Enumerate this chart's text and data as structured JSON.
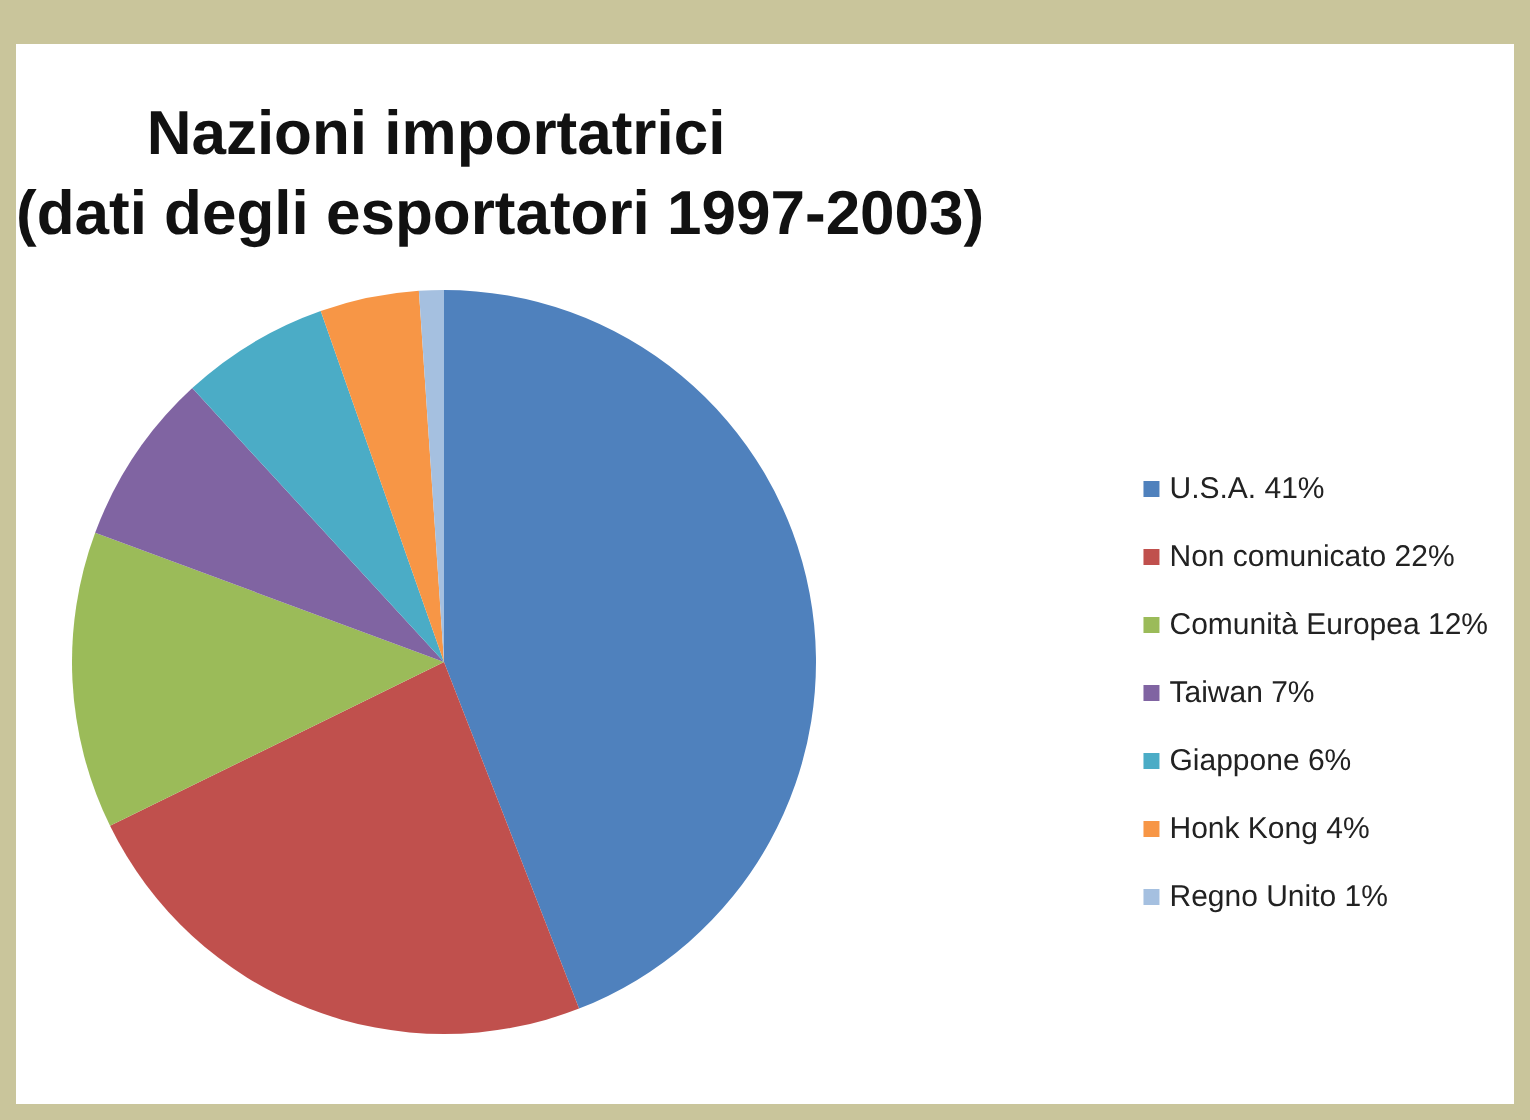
{
  "chart_data": {
    "type": "pie",
    "title": "Nazioni importatrici\n(dati degli esportatori 1997-2003)",
    "categories": [
      "U.S.A. 41%",
      "Non comunicato 22%",
      "Comunità Europea 12%",
      "Taiwan 7%",
      "Giappone 6%",
      "Honk Kong 4%",
      "Regno Unito 1%"
    ],
    "values": [
      41,
      22,
      12,
      7,
      6,
      4,
      1
    ],
    "colors": [
      "#4f81bd",
      "#c0504d",
      "#9bbb59",
      "#8064a2",
      "#4bacc6",
      "#f79646",
      "#a5c0e0"
    ],
    "legend": "right"
  }
}
